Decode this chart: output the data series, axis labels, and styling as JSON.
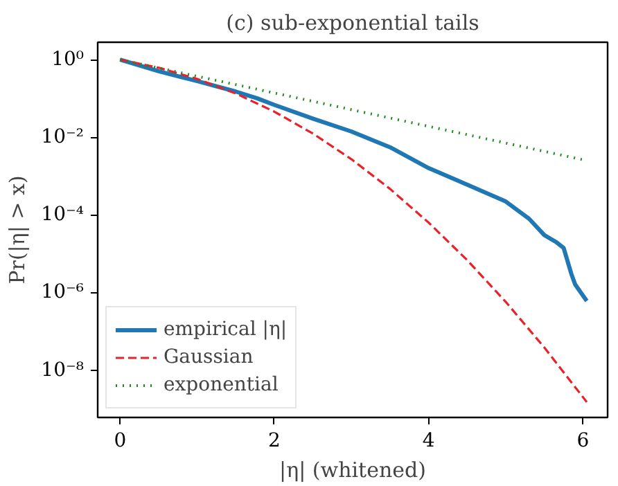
{
  "chart_data": {
    "type": "line",
    "title": "(c) sub-exponential tails",
    "xlabel": "|η| (whitened)",
    "ylabel": "Pr(|η| > x)",
    "log": "y",
    "grid": false,
    "legend": "bottom left",
    "xlim": [
      -0.29,
      6.32
    ],
    "xticks": [
      0,
      2,
      4,
      6
    ],
    "ylim": [
      6e-10,
      2.8
    ],
    "yticks": [
      {
        "value": 1,
        "label": "10⁰"
      },
      {
        "value": 0.01,
        "label": "10⁻²"
      },
      {
        "value": 0.0001,
        "label": "10⁻⁴"
      },
      {
        "value": 1e-06,
        "label": "10⁻⁶"
      },
      {
        "value": 1e-08,
        "label": "10⁻⁸"
      }
    ],
    "series": [
      {
        "name": "empirical |η|",
        "color": "#1f77b4",
        "line_style": "solid",
        "x": [
          0,
          0.5,
          1,
          1.5,
          1.78,
          2,
          2.5,
          3,
          3.5,
          4,
          4.5,
          5,
          5.3,
          5.5,
          5.65,
          5.75,
          5.85,
          5.9,
          6.05
        ],
        "values": [
          1,
          0.5,
          0.28,
          0.15,
          0.1,
          0.068,
          0.03,
          0.014,
          0.0055,
          0.0016,
          0.0006,
          0.00022,
          8e-05,
          3e-05,
          2e-05,
          1.4e-05,
          3e-06,
          1.6e-06,
          6e-07
        ]
      },
      {
        "name": "Gaussian",
        "color": "#e8222a",
        "line_style": "dashed",
        "x": [
          0,
          0.5,
          1,
          1.5,
          2,
          2.5,
          3,
          3.5,
          4,
          4.5,
          5,
          5.5,
          6.05
        ],
        "values": [
          1,
          0.617,
          0.317,
          0.134,
          0.0455,
          0.0124,
          0.0027,
          0.000465,
          6.3e-05,
          6.8e-06,
          5.7e-07,
          3.8e-08,
          1.5e-09
        ]
      },
      {
        "name": "exponential",
        "color": "#228b22",
        "line_style": "dotted",
        "x": [
          0,
          6.05
        ],
        "values": [
          1,
          0.0025
        ]
      }
    ]
  }
}
